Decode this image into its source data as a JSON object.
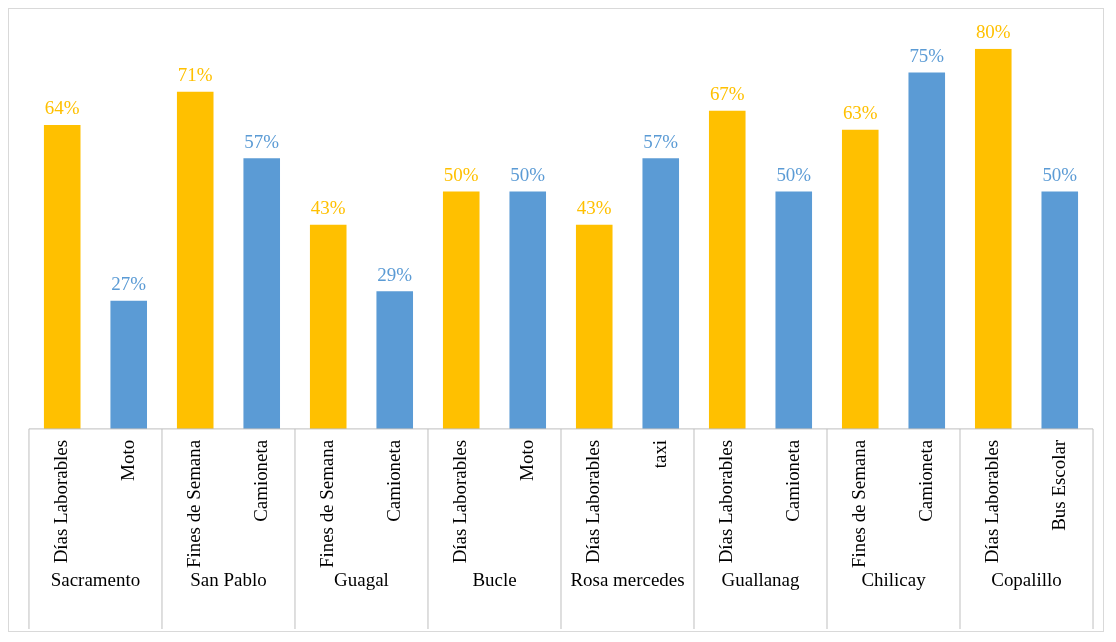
{
  "chart_data": {
    "type": "bar",
    "categories": [
      "Días Laborables",
      "Moto",
      "Fines de Semana",
      "Camioneta",
      "Fines de Semana",
      "Camioneta",
      "Días Laborables",
      "Moto",
      "Días Laborables",
      "taxi",
      "Días Laborables",
      "Camioneta",
      "Fines de Semana",
      "Camioneta",
      "Días Laborables",
      "Bus Escolar"
    ],
    "values": [
      64,
      27,
      71,
      57,
      43,
      29,
      50,
      50,
      43,
      57,
      67,
      50,
      63,
      75,
      80,
      50
    ],
    "value_labels": [
      "64%",
      "27%",
      "71%",
      "57%",
      "43%",
      "29%",
      "50%",
      "50%",
      "43%",
      "57%",
      "67%",
      "50%",
      "63%",
      "75%",
      "80%",
      "50%"
    ],
    "colors": [
      "#ffc000",
      "#5b9bd5",
      "#ffc000",
      "#5b9bd5",
      "#ffc000",
      "#5b9bd5",
      "#ffc000",
      "#5b9bd5",
      "#ffc000",
      "#5b9bd5",
      "#ffc000",
      "#5b9bd5",
      "#ffc000",
      "#5b9bd5",
      "#ffc000",
      "#5b9bd5"
    ],
    "annotations": [
      "Sacramento",
      "San Pablo",
      "Guagal",
      "Bucle",
      "Rosa mercedes",
      "Guallanag",
      "Chilicay",
      "Copalillo"
    ],
    "grid": false,
    "legend": false
  }
}
